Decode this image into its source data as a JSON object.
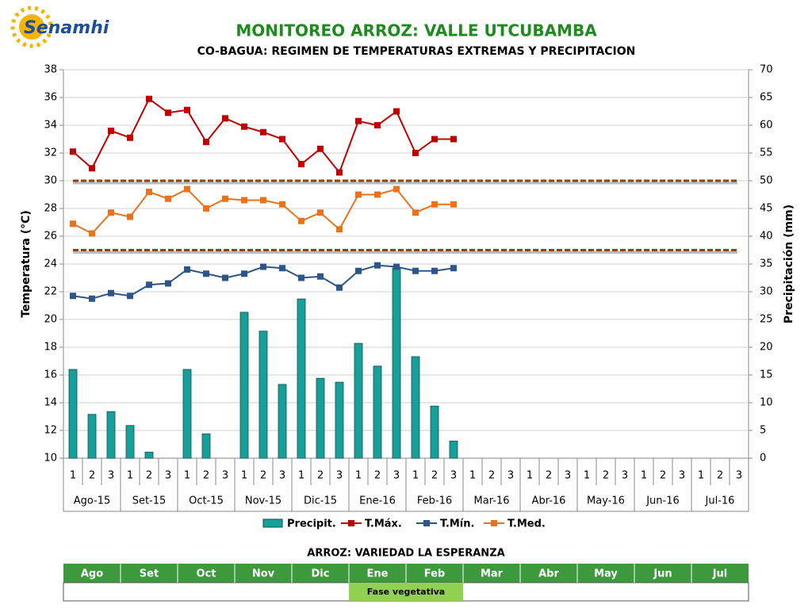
{
  "logo": {
    "name": "Senamhi"
  },
  "chart_data": {
    "type": "combo",
    "title": "MONITOREO ARROZ: VALLE UTCUBAMBA",
    "subtitle": "CO-BAGUA: REGIMEN DE TEMPERATURAS EXTREMAS Y PRECIPITACION",
    "y_label": "Temperatura (°C)",
    "y2_label": "Precipitación (mm)",
    "categories": [
      "1",
      "2",
      "3",
      "1",
      "2",
      "3",
      "1",
      "2",
      "3",
      "1",
      "2",
      "3",
      "1",
      "2",
      "3",
      "1",
      "2",
      "3",
      "1",
      "2",
      "3",
      "1",
      "2",
      "3",
      "1",
      "2",
      "3",
      "1",
      "2",
      "3",
      "1",
      "2",
      "3",
      "1",
      "2",
      "3"
    ],
    "groups": [
      "Ago-15",
      "Set-15",
      "Oct-15",
      "Nov-15",
      "Dic-15",
      "Ene-16",
      "Feb-16",
      "Mar-16",
      "Abr-16",
      "May-16",
      "Jun-16",
      "Jul-16"
    ],
    "ylim": [
      10,
      38
    ],
    "yticks": [
      10,
      12,
      14,
      16,
      18,
      20,
      22,
      24,
      26,
      28,
      30,
      32,
      34,
      36,
      38
    ],
    "y2lim": [
      0,
      70
    ],
    "y2ticks": [
      0,
      5,
      10,
      15,
      20,
      25,
      30,
      35,
      40,
      45,
      50,
      55,
      60,
      65,
      70
    ],
    "grid": true,
    "reference_lines": [
      30,
      25
    ],
    "reference_color": "#8b4513",
    "series": [
      {
        "name": "Precipit.",
        "type": "bar",
        "axis": "y2",
        "color": "#17a09a",
        "values": [
          16.0,
          7.9,
          8.4,
          5.9,
          1.1,
          0,
          16.0,
          4.4,
          0,
          26.3,
          22.9,
          13.3,
          28.7,
          14.4,
          13.7,
          20.7,
          16.6,
          34.3,
          18.3,
          9.4,
          3.1,
          null,
          null,
          null,
          null,
          null,
          null,
          null,
          null,
          null,
          null,
          null,
          null,
          null,
          null,
          null
        ]
      },
      {
        "name": "T.Máx.",
        "type": "line",
        "color": "#c00000",
        "values": [
          32.1,
          30.9,
          33.6,
          33.1,
          35.9,
          34.9,
          35.1,
          32.8,
          34.5,
          33.9,
          33.5,
          33.0,
          31.2,
          32.3,
          30.6,
          34.3,
          34.0,
          35.0,
          32.0,
          33.0,
          33.0,
          null,
          null,
          null,
          null,
          null,
          null,
          null,
          null,
          null,
          null,
          null,
          null,
          null,
          null,
          null
        ]
      },
      {
        "name": "T.Mín.",
        "type": "line",
        "color": "#2c5687",
        "values": [
          21.7,
          21.5,
          21.9,
          21.7,
          22.5,
          22.6,
          23.6,
          23.3,
          23.0,
          23.3,
          23.8,
          23.7,
          23.0,
          23.1,
          22.3,
          23.5,
          23.9,
          23.8,
          23.5,
          23.5,
          23.7,
          null,
          null,
          null,
          null,
          null,
          null,
          null,
          null,
          null,
          null,
          null,
          null,
          null,
          null,
          null
        ]
      },
      {
        "name": "T.Med.",
        "type": "line",
        "color": "#e8731c",
        "values": [
          26.9,
          26.2,
          27.7,
          27.4,
          29.2,
          28.7,
          29.4,
          28.0,
          28.7,
          28.6,
          28.6,
          28.3,
          27.1,
          27.7,
          26.5,
          29.0,
          29.0,
          29.4,
          27.7,
          28.3,
          28.3,
          null,
          null,
          null,
          null,
          null,
          null,
          null,
          null,
          null,
          null,
          null,
          null,
          null,
          null,
          null
        ]
      }
    ]
  },
  "table": {
    "title": "ARROZ: VARIEDAD LA ESPERANZA",
    "months": [
      "Ago",
      "Set",
      "Oct",
      "Nov",
      "Dic",
      "Ene",
      "Feb",
      "Mar",
      "Abr",
      "May",
      "Jun",
      "Jul"
    ],
    "phase": "Fase vegetativa"
  }
}
